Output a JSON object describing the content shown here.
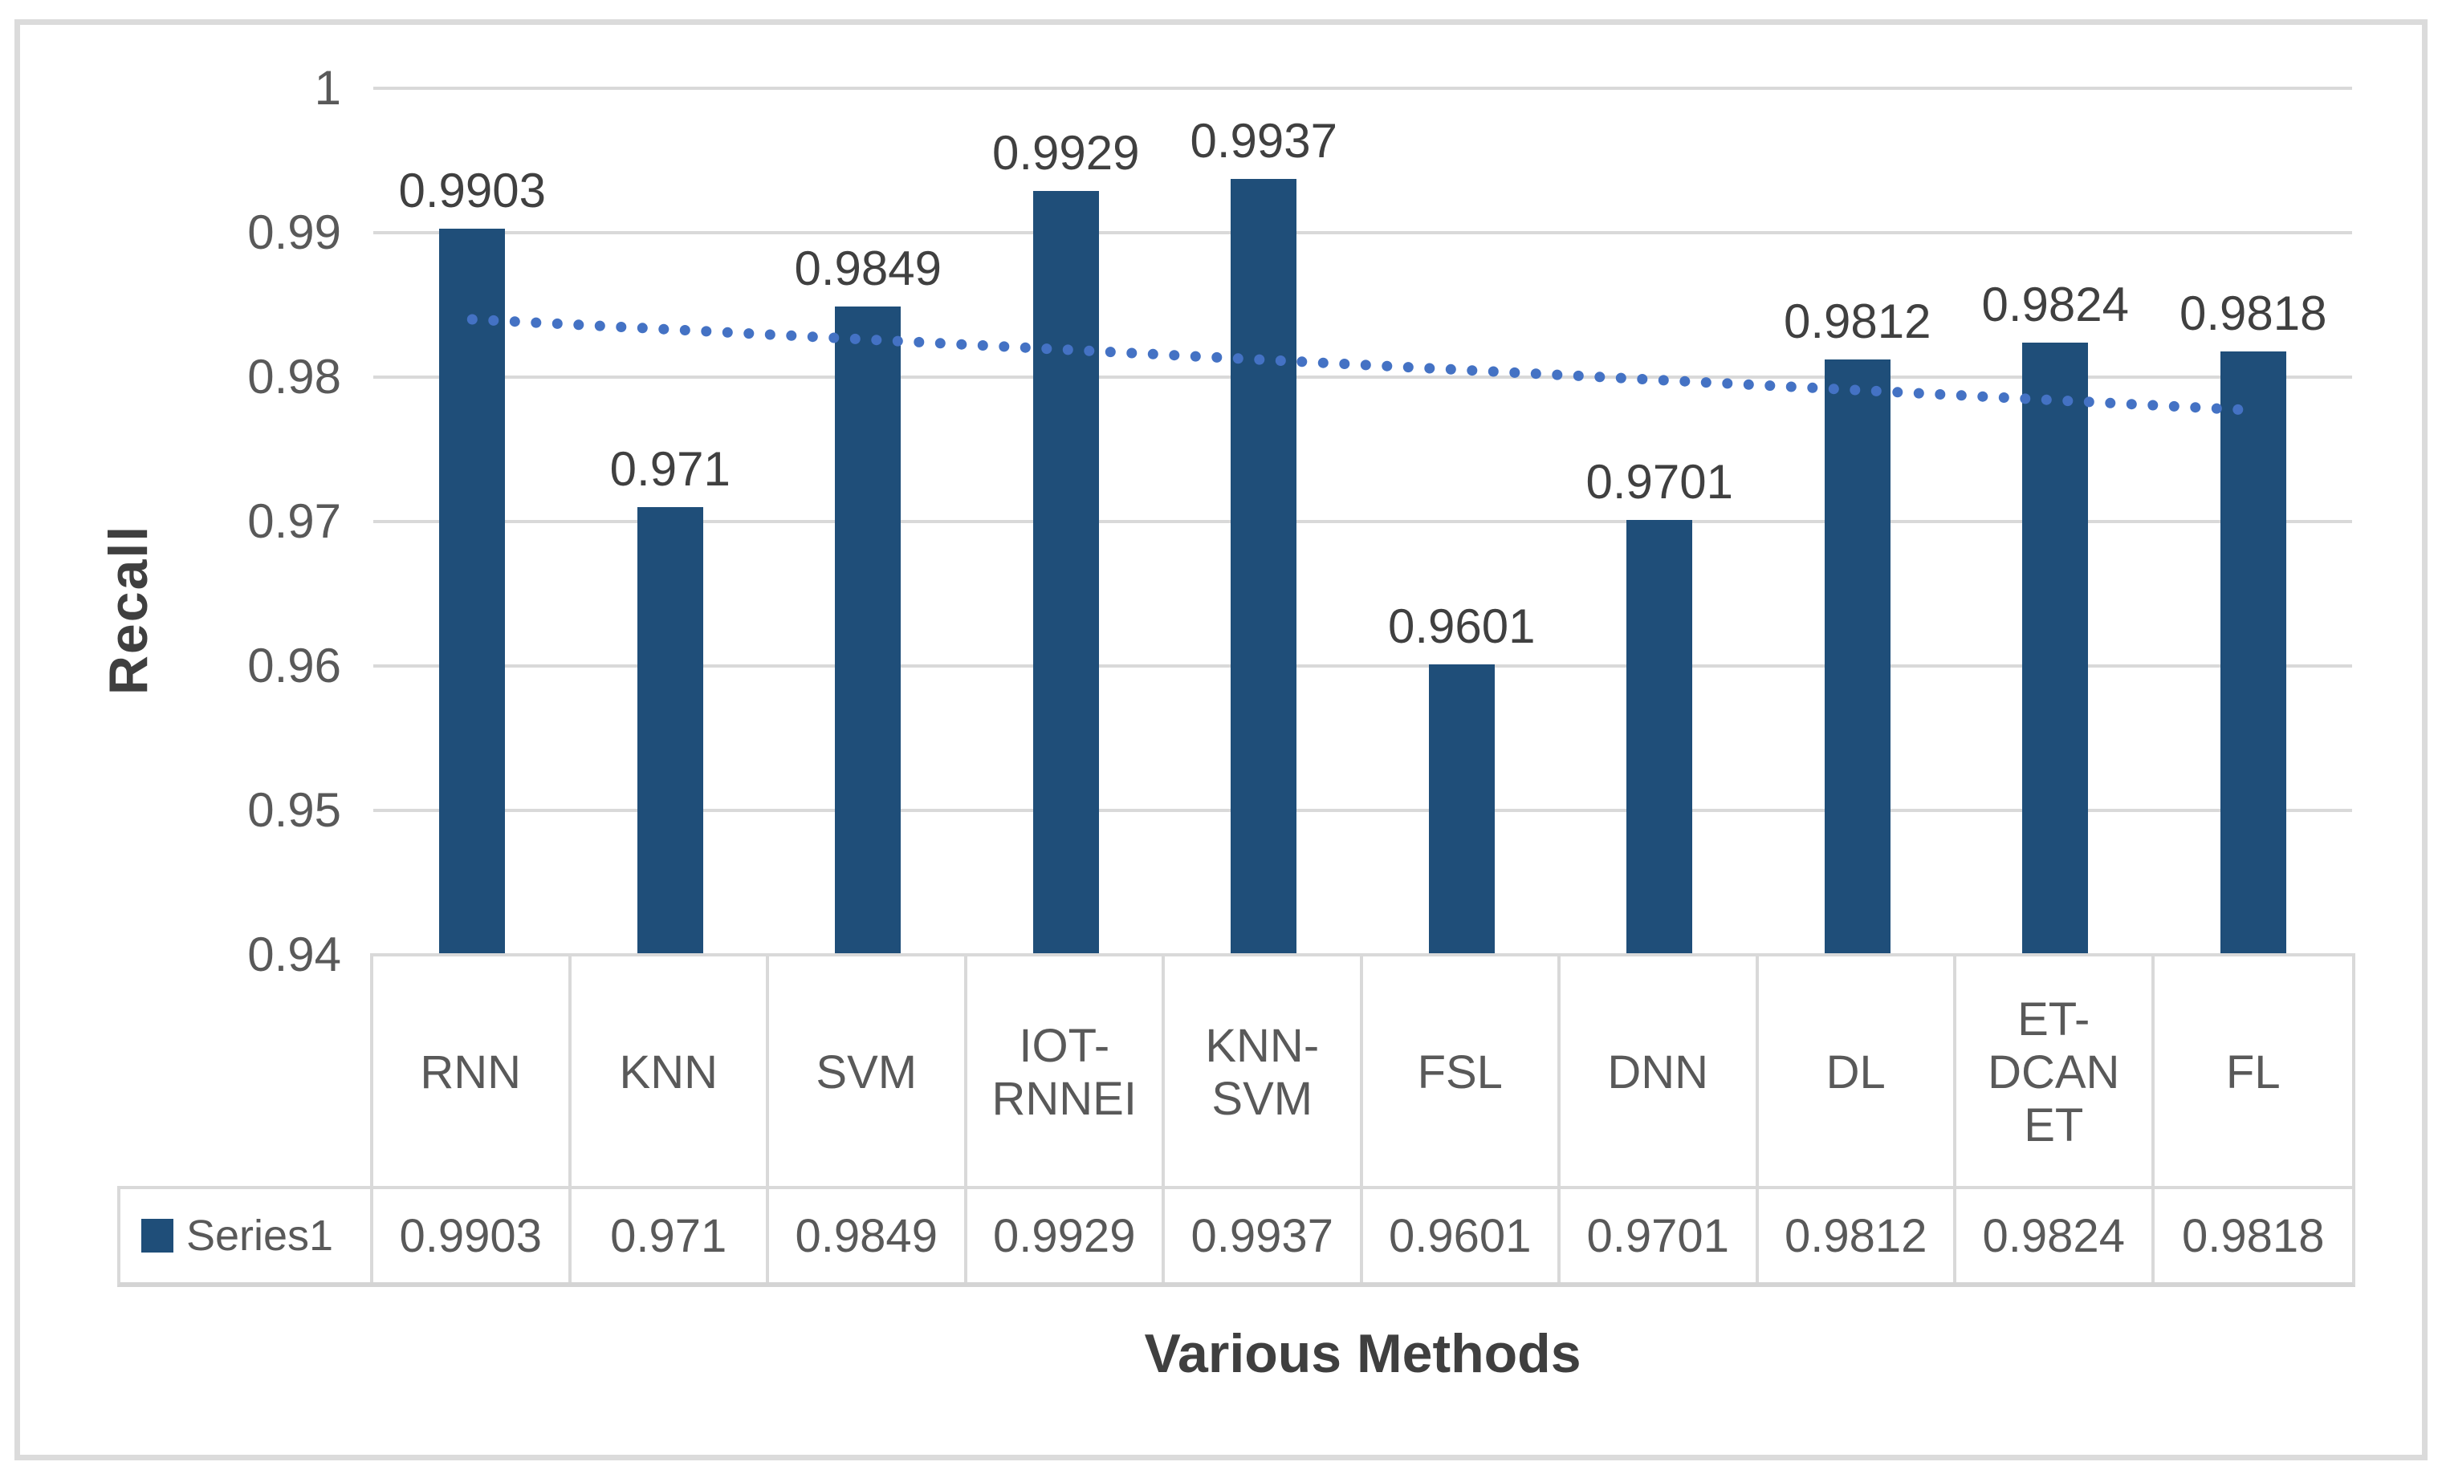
{
  "chart_data": {
    "type": "bar",
    "title": "",
    "xlabel": "Various Methods",
    "ylabel": "Recall",
    "categories": [
      "RNN",
      "KNN",
      "SVM",
      "IOT-RNNEI",
      "KNN-SVM",
      "FSL",
      "DNN",
      "DL",
      "ET-DCANET",
      "FL"
    ],
    "category_display_lines": [
      [
        "RNN"
      ],
      [
        "KNN"
      ],
      [
        "SVM"
      ],
      [
        "IOT-",
        "RNNEI"
      ],
      [
        "KNN-",
        "SVM"
      ],
      [
        "FSL"
      ],
      [
        "DNN"
      ],
      [
        "DL"
      ],
      [
        "ET-",
        "DCAN",
        "ET"
      ],
      [
        "FL"
      ]
    ],
    "series": [
      {
        "name": "Series1",
        "values": [
          0.9903,
          0.971,
          0.9849,
          0.9929,
          0.9937,
          0.9601,
          0.9701,
          0.9812,
          0.9824,
          0.9818
        ]
      }
    ],
    "data_labels": [
      "0.9903",
      "0.971",
      "0.9849",
      "0.9929",
      "0.9937",
      "0.9601",
      "0.9701",
      "0.9812",
      "0.9824",
      "0.9818"
    ],
    "ylim": [
      0.94,
      1
    ],
    "yticks": [
      {
        "label": "1",
        "value": 1
      },
      {
        "label": "0.99",
        "value": 0.99
      },
      {
        "label": "0.98",
        "value": 0.98
      },
      {
        "label": "0.97",
        "value": 0.97
      },
      {
        "label": "0.96",
        "value": 0.96
      },
      {
        "label": "0.95",
        "value": 0.95
      },
      {
        "label": "0.94",
        "value": 0.94
      }
    ],
    "grid": true,
    "legend_position": "data-table-left",
    "trendline": {
      "type": "linear",
      "style": "dotted",
      "start_value": 0.984,
      "end_value": 0.9777
    },
    "colors": {
      "bar": "#1F4E79",
      "trendline": "#4472C4",
      "gridline": "#D9D9D9",
      "tick_text": "#595959",
      "data_label_text": "#404040",
      "axis_title_text": "#3F3F3F",
      "table_border": "#D9D9D9",
      "figure_border": "#DBDBDB",
      "background": "#FFFFFF"
    }
  }
}
